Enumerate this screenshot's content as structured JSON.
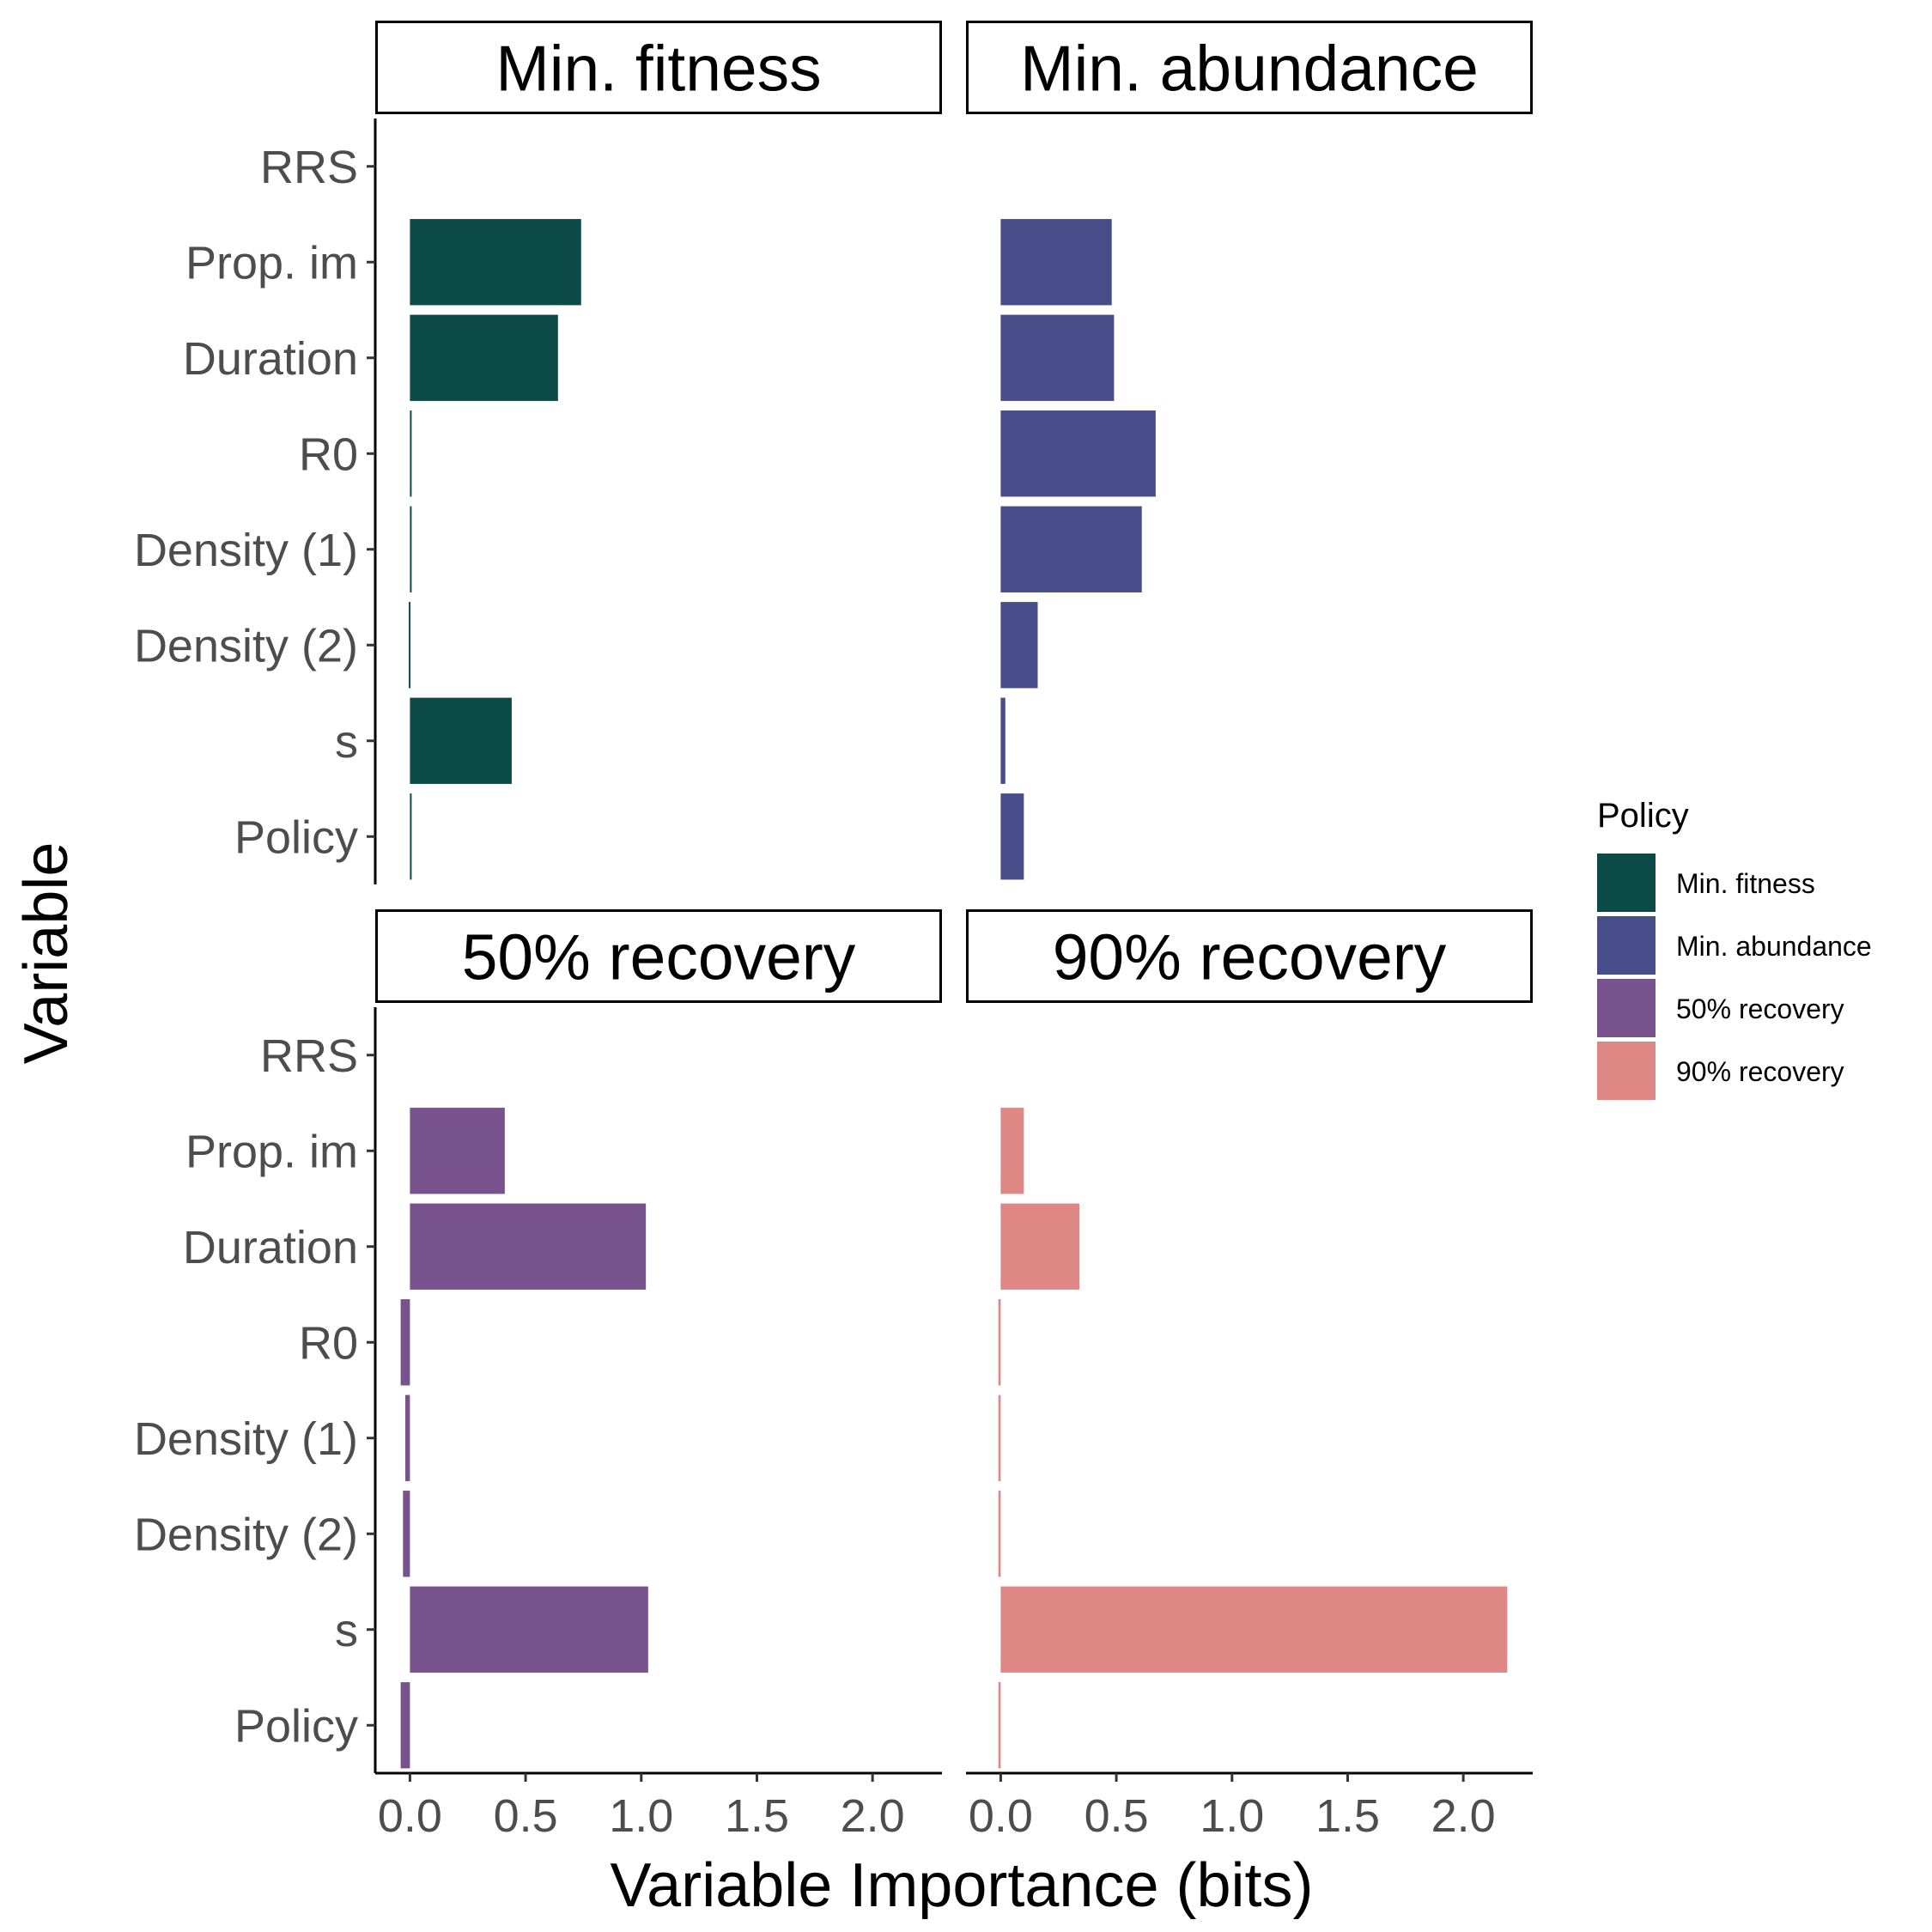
{
  "chart_data": {
    "type": "bar",
    "orientation": "horizontal",
    "xlabel": "Variable Importance (bits)",
    "ylabel": "Variable",
    "xlim": [
      -0.15,
      2.3
    ],
    "x_ticks": [
      "0.0",
      "0.5",
      "1.0",
      "1.5",
      "2.0"
    ],
    "x_tick_values": [
      0,
      0.5,
      1.0,
      1.5,
      2.0
    ],
    "categories": [
      "RRS",
      "Prop. im",
      "Duration",
      "R0",
      "Density (1)",
      "Density (2)",
      "s",
      "Policy"
    ],
    "grid": false,
    "legend": {
      "title": "Policy",
      "position": "right",
      "entries": [
        "Min. fitness",
        "Min. abundance",
        "50% recovery",
        "90% recovery"
      ]
    },
    "panels": [
      {
        "title": "Min. fitness",
        "color": "#0c4a47",
        "values": [
          0,
          0.74,
          0.64,
          0.005,
          0.002,
          -0.005,
          0.44,
          0.002
        ]
      },
      {
        "title": "Min. abundance",
        "color": "#474d89",
        "values": [
          0,
          0.48,
          0.49,
          0.67,
          0.61,
          0.16,
          0.02,
          0.1
        ]
      },
      {
        "title": "50% recovery",
        "color": "#77528c",
        "values": [
          0,
          0.41,
          1.02,
          -0.04,
          -0.02,
          -0.03,
          1.03,
          -0.04
        ]
      },
      {
        "title": "90% recovery",
        "color": "#de8785",
        "values": [
          0,
          0.1,
          0.34,
          -0.01,
          -0.01,
          -0.01,
          2.19,
          -0.01
        ]
      }
    ]
  }
}
